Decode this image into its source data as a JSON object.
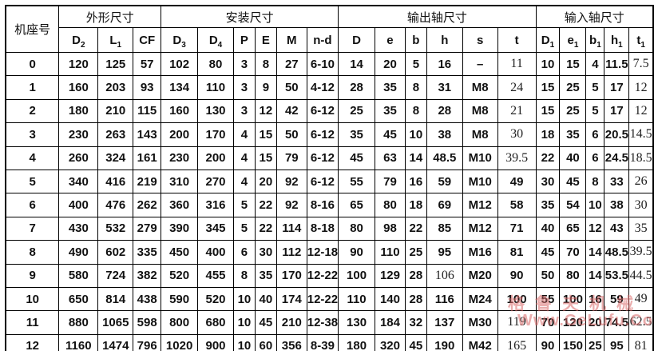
{
  "table": {
    "stub_header": "机座号",
    "groups": [
      {
        "label": "外形尺寸",
        "colspan": 3
      },
      {
        "label": "安装尺寸",
        "colspan": 6
      },
      {
        "label": "输出轴尺寸",
        "colspan": 6
      },
      {
        "label": "输入轴尺寸",
        "colspan": 5
      }
    ],
    "columns": [
      "D₂",
      "L₁",
      "CF",
      "D₃",
      "D₄",
      "P",
      "E",
      "M",
      "n-d",
      "D",
      "e",
      "b",
      "h",
      "s",
      "t",
      "D₁",
      "e₁",
      "b₁",
      "h₁",
      "t₁"
    ],
    "rows": [
      [
        "0",
        "120",
        "125",
        "57",
        "102",
        "80",
        "3",
        "8",
        "27",
        "6-10",
        "14",
        "20",
        "5",
        "16",
        "–",
        "11",
        "10",
        "15",
        "4",
        "11.5",
        "7.5"
      ],
      [
        "1",
        "160",
        "203",
        "93",
        "134",
        "110",
        "3",
        "9",
        "50",
        "4-12",
        "28",
        "35",
        "8",
        "31",
        "M8",
        "24",
        "15",
        "25",
        "5",
        "17",
        "12"
      ],
      [
        "2",
        "180",
        "210",
        "115",
        "160",
        "130",
        "3",
        "12",
        "42",
        "6-12",
        "25",
        "35",
        "8",
        "28",
        "M8",
        "21",
        "15",
        "25",
        "5",
        "17",
        "12"
      ],
      [
        "3",
        "230",
        "263",
        "143",
        "200",
        "170",
        "4",
        "15",
        "50",
        "6-12",
        "35",
        "45",
        "10",
        "38",
        "M8",
        "30",
        "18",
        "35",
        "6",
        "20.5",
        "14.5"
      ],
      [
        "4",
        "260",
        "324",
        "161",
        "230",
        "200",
        "4",
        "15",
        "79",
        "6-12",
        "45",
        "63",
        "14",
        "48.5",
        "M10",
        "39.5",
        "22",
        "40",
        "6",
        "24.5",
        "18.5"
      ],
      [
        "5",
        "340",
        "416",
        "219",
        "310",
        "270",
        "4",
        "20",
        "92",
        "6-12",
        "55",
        "79",
        "16",
        "59",
        "M10",
        "49",
        "30",
        "45",
        "8",
        "33",
        "26"
      ],
      [
        "6",
        "400",
        "476",
        "262",
        "360",
        "316",
        "5",
        "22",
        "92",
        "8-16",
        "65",
        "80",
        "18",
        "69",
        "M12",
        "58",
        "35",
        "54",
        "10",
        "38",
        "30"
      ],
      [
        "7",
        "430",
        "532",
        "279",
        "390",
        "345",
        "5",
        "22",
        "114",
        "8-18",
        "80",
        "98",
        "22",
        "85",
        "M12",
        "71",
        "40",
        "65",
        "12",
        "43",
        "35"
      ],
      [
        "8",
        "490",
        "602",
        "335",
        "450",
        "400",
        "6",
        "30",
        "112",
        "12-18",
        "90",
        "110",
        "25",
        "95",
        "M16",
        "81",
        "45",
        "70",
        "14",
        "48.5",
        "39.5"
      ],
      [
        "9",
        "580",
        "724",
        "382",
        "520",
        "455",
        "8",
        "35",
        "170",
        "12-22",
        "100",
        "129",
        "28",
        "106",
        "M20",
        "90",
        "50",
        "80",
        "14",
        "53.5",
        "44.5"
      ],
      [
        "10",
        "650",
        "814",
        "438",
        "590",
        "520",
        "10",
        "40",
        "174",
        "12-22",
        "110",
        "140",
        "28",
        "116",
        "M24",
        "100",
        "55",
        "100",
        "16",
        "59",
        "49"
      ],
      [
        "11",
        "880",
        "1065",
        "598",
        "800",
        "680",
        "10",
        "45",
        "210",
        "12-38",
        "130",
        "184",
        "32",
        "137",
        "M30",
        "119",
        "70",
        "120",
        "20",
        "74.5",
        "62.5"
      ],
      [
        "12",
        "1160",
        "1474",
        "796",
        "1020",
        "900",
        "10",
        "60",
        "356",
        "8-39",
        "180",
        "320",
        "45",
        "190",
        "M42",
        "165",
        "90",
        "150",
        "25",
        "95",
        "81"
      ]
    ]
  },
  "watermark": {
    "line1": "格鲁夫机械",
    "line2": "Www.GeLufu.Com",
    "color": "#d96a6a"
  }
}
